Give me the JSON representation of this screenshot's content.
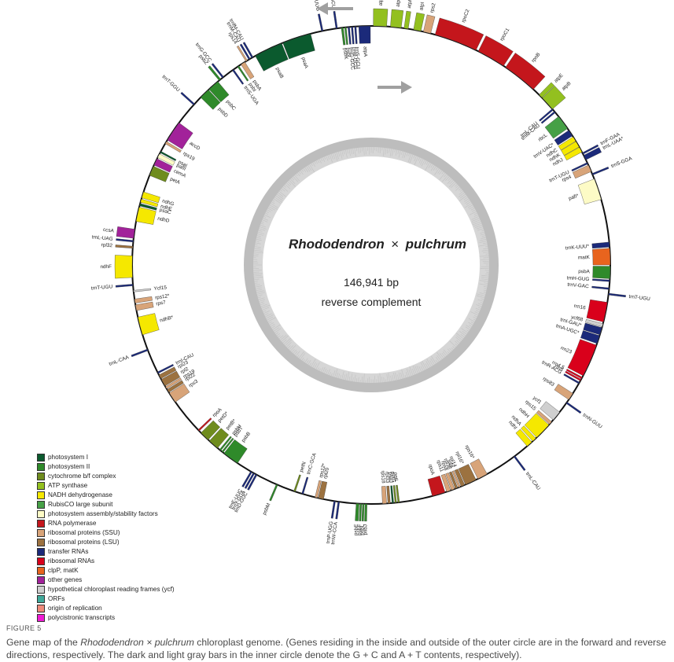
{
  "center": {
    "title_italic_1": "Rhododendron",
    "title_cross": "×",
    "title_italic_2": "pulchrum",
    "size": "146,941 bp",
    "orientation": "reverse complement"
  },
  "legend": [
    {
      "label": "photosystem I",
      "color": "#0b5a2e"
    },
    {
      "label": "photosystem II",
      "color": "#2f8a2a"
    },
    {
      "label": "cytochrome b/f complex",
      "color": "#6f8c1e"
    },
    {
      "label": "ATP synthase",
      "color": "#93c01f"
    },
    {
      "label": "NADH dehydrogenase",
      "color": "#f5e800"
    },
    {
      "label": "RubisCO large subunit",
      "color": "#46a046"
    },
    {
      "label": "photosystem assembly/stability factors",
      "color": "#fdfbc6"
    },
    {
      "label": "RNA polymerase",
      "color": "#c4161c"
    },
    {
      "label": "ribosomal proteins (SSU)",
      "color": "#d8a479"
    },
    {
      "label": "ribosomal proteins (LSU)",
      "color": "#9c7240"
    },
    {
      "label": "transfer RNAs",
      "color": "#1b2a7a"
    },
    {
      "label": "ribosomal RNAs",
      "color": "#d9001b"
    },
    {
      "label": "clpP, matK",
      "color": "#e8641e"
    },
    {
      "label": "other genes",
      "color": "#a2229a"
    },
    {
      "label": "hypothetical chloroplast reading frames (ycf)",
      "color": "#cfcfcf"
    },
    {
      "label": "ORFs",
      "color": "#3fa99a"
    },
    {
      "label": "origin of replication",
      "color": "#ef8a7a"
    },
    {
      "label": "polycistronic transcripts",
      "color": "#ef1bd4"
    }
  ],
  "genes": [
    {
      "name": "atpA",
      "pos": 0.5,
      "len": 3.2,
      "side": "out",
      "color": "#93c01f"
    },
    {
      "name": "atpF*",
      "pos": 4.6,
      "len": 2.6,
      "side": "out",
      "color": "#93c01f"
    },
    {
      "name": "atpH",
      "pos": 7.9,
      "len": 1.0,
      "side": "out",
      "color": "#93c01f"
    },
    {
      "name": "atpI",
      "pos": 10.2,
      "len": 1.8,
      "side": "out",
      "color": "#93c01f"
    },
    {
      "name": "rps2",
      "pos": 12.6,
      "len": 1.8,
      "side": "out",
      "color": "#d8a479"
    },
    {
      "name": "rpoC2",
      "pos": 15.5,
      "len": 10.5,
      "side": "out",
      "color": "#c4161c"
    },
    {
      "name": "rpoC1",
      "pos": 26.6,
      "len": 7.0,
      "side": "out",
      "color": "#c4161c"
    },
    {
      "name": "rpoB",
      "pos": 34.2,
      "len": 8.5,
      "side": "out",
      "color": "#c4161c"
    },
    {
      "name": "atpE",
      "pos": 44.6,
      "len": 1.0,
      "side": "out",
      "color": "#93c01f"
    },
    {
      "name": "atpB",
      "pos": 45.7,
      "len": 3.6,
      "side": "out",
      "color": "#93c01f"
    },
    {
      "name": "trnL-CAU",
      "pos": 49.2,
      "len": 0.4,
      "side": "in",
      "color": "#1b2a7a"
    },
    {
      "name": "trnM-CAU",
      "pos": 50.0,
      "len": 0.4,
      "side": "in",
      "color": "#1b2a7a"
    },
    {
      "name": "rbcL",
      "pos": 51.6,
      "len": 3.6,
      "side": "in",
      "color": "#46a046"
    },
    {
      "name": "trnV-UAC*",
      "pos": 55.7,
      "len": 1.6,
      "side": "in",
      "color": "#1b2a7a"
    },
    {
      "name": "ndhC",
      "pos": 57.6,
      "len": 1.2,
      "side": "in",
      "color": "#f5e800"
    },
    {
      "name": "ndhK",
      "pos": 58.9,
      "len": 1.5,
      "side": "in",
      "color": "#f5e800"
    },
    {
      "name": "ndhJ",
      "pos": 60.5,
      "len": 1.3,
      "side": "in",
      "color": "#f5e800"
    },
    {
      "name": "trnF-GAA",
      "pos": 62.0,
      "len": 0.4,
      "side": "out",
      "color": "#1b2a7a"
    },
    {
      "name": "trnL-UAA*",
      "pos": 62.7,
      "len": 1.2,
      "side": "out",
      "color": "#1b2a7a"
    },
    {
      "name": "trnT-UGU",
      "pos": 64.6,
      "len": 0.4,
      "side": "in",
      "color": "#1b2a7a"
    },
    {
      "name": "rps4",
      "pos": 65.3,
      "len": 1.7,
      "side": "in",
      "color": "#d8a479"
    },
    {
      "name": "trnS-GGA",
      "pos": 67.5,
      "len": 0.4,
      "side": "out",
      "color": "#1b2a7a"
    },
    {
      "name": "pafI*",
      "pos": 68.9,
      "len": 5.2,
      "side": "in",
      "color": "#fdfbc6"
    },
    {
      "name": "trnK-UUU*",
      "pos": 84.5,
      "len": 1.2,
      "side": "in",
      "color": "#1b2a7a"
    },
    {
      "name": "matK",
      "pos": 86.0,
      "len": 4.0,
      "side": "in",
      "color": "#e8641e"
    },
    {
      "name": "psbA",
      "pos": 90.3,
      "len": 3.0,
      "side": "in",
      "color": "#2f8a2a"
    },
    {
      "name": "trnH-GUG",
      "pos": 93.6,
      "len": 0.4,
      "side": "in",
      "color": "#1b2a7a"
    },
    {
      "name": "trnV-GAC",
      "pos": 95.5,
      "len": 0.4,
      "side": "in",
      "color": "#1b2a7a"
    },
    {
      "name": "trnT-UGU",
      "pos": 96.8,
      "len": 0.4,
      "side": "out",
      "color": "#1b2a7a"
    },
    {
      "name": "rrn16",
      "pos": 99.0,
      "len": 4.8,
      "side": "in",
      "color": "#d9001b"
    },
    {
      "name": "ycf68",
      "pos": 104.2,
      "len": 0.8,
      "side": "in",
      "color": "#cfcfcf"
    },
    {
      "name": "trnI-GAU*",
      "pos": 105.2,
      "len": 1.8,
      "side": "in",
      "color": "#1b2a7a"
    },
    {
      "name": "trnA-UGC*",
      "pos": 107.2,
      "len": 2.0,
      "side": "in",
      "color": "#1b2a7a"
    },
    {
      "name": "rrn23",
      "pos": 109.6,
      "len": 8.0,
      "side": "in",
      "color": "#d9001b"
    },
    {
      "name": "rrn4.5",
      "pos": 118.0,
      "len": 0.4,
      "side": "in",
      "color": "#d9001b"
    },
    {
      "name": "rrn5",
      "pos": 118.6,
      "len": 0.4,
      "side": "in",
      "color": "#d9001b"
    },
    {
      "name": "trnR-ACG",
      "pos": 119.4,
      "len": 0.4,
      "side": "in",
      "color": "#1b2a7a"
    },
    {
      "name": "rps83",
      "pos": 122.5,
      "len": 1.8,
      "side": "in",
      "color": "#d8a479"
    },
    {
      "name": "trnN-GUU",
      "pos": 125.0,
      "len": 0.4,
      "side": "out",
      "color": "#1b2a7a"
    },
    {
      "name": "ycf1",
      "pos": 128.0,
      "len": 2.4,
      "side": "in",
      "color": "#cfcfcf"
    },
    {
      "name": "rps15",
      "pos": 131.0,
      "len": 0.8,
      "side": "in",
      "color": "#d8a479"
    },
    {
      "name": "ndhH",
      "pos": 132.0,
      "len": 4.2,
      "side": "in",
      "color": "#f5e800"
    },
    {
      "name": "ndhA",
      "pos": 136.5,
      "len": 1.0,
      "side": "in",
      "color": "#f5e800"
    },
    {
      "name": "ndhI",
      "pos": 137.8,
      "len": 1.5,
      "side": "in",
      "color": "#f5e800"
    },
    {
      "name": "trnL-CAU",
      "pos": 143.0,
      "len": 0.4,
      "side": "out",
      "color": "#1b2a7a"
    },
    {
      "name": "rps16*",
      "pos": 151.0,
      "len": 2.5,
      "side": "in",
      "color": "#d8a479"
    },
    {
      "name": "rpl16*",
      "pos": 154.0,
      "len": 2.8,
      "side": "in",
      "color": "#9c7240"
    },
    {
      "name": "rpl14",
      "pos": 157.0,
      "len": 0.9,
      "side": "in",
      "color": "#9c7240"
    },
    {
      "name": "infA",
      "pos": 158.1,
      "len": 0.5,
      "side": "in",
      "color": "#d8a479"
    },
    {
      "name": "rpl36",
      "pos": 158.8,
      "len": 0.6,
      "side": "in",
      "color": "#9c7240"
    },
    {
      "name": "rps8",
      "pos": 159.6,
      "len": 0.8,
      "side": "in",
      "color": "#d8a479"
    },
    {
      "name": "rps11",
      "pos": 160.6,
      "len": 1.0,
      "side": "in",
      "color": "#d8a479"
    },
    {
      "name": "rpoA",
      "pos": 162.0,
      "len": 3.2,
      "side": "in",
      "color": "#c4161c"
    },
    {
      "name": "petL",
      "pos": 173.2,
      "len": 0.4,
      "side": "in",
      "color": "#6f8c1e"
    },
    {
      "name": "petG",
      "pos": 173.9,
      "len": 0.4,
      "side": "in",
      "color": "#6f8c1e"
    },
    {
      "name": "psaJ",
      "pos": 174.6,
      "len": 0.4,
      "side": "in",
      "color": "#0b5a2e"
    },
    {
      "name": "rpl33",
      "pos": 175.4,
      "len": 0.6,
      "side": "in",
      "color": "#9c7240"
    },
    {
      "name": "rps18",
      "pos": 176.3,
      "len": 1.0,
      "side": "in",
      "color": "#d8a479"
    },
    {
      "name": "psbJ",
      "pos": 181.0,
      "len": 0.5,
      "side": "out",
      "color": "#2f8a2a"
    },
    {
      "name": "psbL",
      "pos": 181.7,
      "len": 0.4,
      "side": "out",
      "color": "#2f8a2a"
    },
    {
      "name": "psbF",
      "pos": 182.3,
      "len": 0.4,
      "side": "out",
      "color": "#2f8a2a"
    },
    {
      "name": "psbE",
      "pos": 182.9,
      "len": 0.7,
      "side": "out",
      "color": "#2f8a2a"
    },
    {
      "name": "trnW-CCA",
      "pos": 187.6,
      "len": 0.4,
      "side": "out",
      "color": "#1b2a7a"
    },
    {
      "name": "trnP-UGG",
      "pos": 188.6,
      "len": 0.4,
      "side": "out",
      "color": "#1b2a7a"
    },
    {
      "name": "rpl20",
      "pos": 191.5,
      "len": 1.3,
      "side": "in",
      "color": "#9c7240"
    },
    {
      "name": "rps12*",
      "pos": 193.0,
      "len": 0.6,
      "side": "in",
      "color": "#d8a479"
    },
    {
      "name": "trnC-GCA",
      "pos": 196.5,
      "len": 0.4,
      "side": "in",
      "color": "#1b2a7a"
    },
    {
      "name": "petN",
      "pos": 198.5,
      "len": 0.4,
      "side": "in",
      "color": "#6f8c1e"
    },
    {
      "name": "psbM",
      "pos": 203.0,
      "len": 0.4,
      "side": "out",
      "color": "#2f8a2a"
    },
    {
      "name": "trnD-GUC",
      "pos": 208.5,
      "len": 0.4,
      "side": "out",
      "color": "#1b2a7a"
    },
    {
      "name": "trnY-GUA",
      "pos": 209.2,
      "len": 0.4,
      "side": "out",
      "color": "#1b2a7a"
    },
    {
      "name": "trnE-UUC",
      "pos": 209.9,
      "len": 0.4,
      "side": "out",
      "color": "#1b2a7a"
    },
    {
      "name": "psbB",
      "pos": 214.0,
      "len": 4.0,
      "side": "in",
      "color": "#2f8a2a"
    },
    {
      "name": "psbT",
      "pos": 218.3,
      "len": 0.4,
      "side": "in",
      "color": "#2f8a2a"
    },
    {
      "name": "psbH",
      "pos": 219.0,
      "len": 0.4,
      "side": "in",
      "color": "#2f8a2a"
    },
    {
      "name": "petB*",
      "pos": 220.0,
      "len": 2.6,
      "side": "in",
      "color": "#6f8c1e"
    },
    {
      "name": "petD*",
      "pos": 223.0,
      "len": 2.4,
      "side": "in",
      "color": "#6f8c1e"
    },
    {
      "name": "rpoA",
      "pos": 226.0,
      "len": 0.4,
      "side": "in",
      "color": "#c4161c"
    },
    {
      "name": "rps3",
      "pos": 235.0,
      "len": 2.6,
      "side": "in",
      "color": "#d8a479"
    },
    {
      "name": "rpl22",
      "pos": 237.8,
      "len": 0.8,
      "side": "in",
      "color": "#9c7240"
    },
    {
      "name": "rps19",
      "pos": 238.8,
      "len": 0.6,
      "side": "in",
      "color": "#d8a479"
    },
    {
      "name": "rpl2",
      "pos": 239.6,
      "len": 1.8,
      "side": "in",
      "color": "#9c7240"
    },
    {
      "name": "rpl23",
      "pos": 241.6,
      "len": 1.0,
      "side": "in",
      "color": "#9c7240"
    },
    {
      "name": "trnI-CAU",
      "pos": 243.0,
      "len": 0.4,
      "side": "in",
      "color": "#1b2a7a"
    },
    {
      "name": "trnL-CAA",
      "pos": 249.0,
      "len": 0.4,
      "side": "out",
      "color": "#1b2a7a"
    },
    {
      "name": "ndhB*",
      "pos": 253.0,
      "len": 4.4,
      "side": "in",
      "color": "#f5e800"
    },
    {
      "name": "rps7",
      "pos": 259.0,
      "len": 1.4,
      "side": "in",
      "color": "#d8a479"
    },
    {
      "name": "rps12*",
      "pos": 260.8,
      "len": 1.0,
      "side": "in",
      "color": "#d8a479"
    },
    {
      "name": "Ycf15",
      "pos": 263.5,
      "len": 0.4,
      "side": "in",
      "color": "#cfcfcf"
    },
    {
      "name": "trnT-UGU",
      "pos": 265.0,
      "len": 0.4,
      "side": "out",
      "color": "#1b2a7a"
    },
    {
      "name": "ndhF",
      "pos": 267.0,
      "len": 5.2,
      "side": "out",
      "color": "#f5e800"
    },
    {
      "name": "rpl32",
      "pos": 274.0,
      "len": 0.5,
      "side": "out",
      "color": "#9c7240"
    },
    {
      "name": "trnL-UAG",
      "pos": 275.5,
      "len": 0.4,
      "side": "out",
      "color": "#1b2a7a"
    },
    {
      "name": "ccsA",
      "pos": 276.4,
      "len": 2.2,
      "side": "out",
      "color": "#a2229a"
    },
    {
      "name": "ndhD",
      "pos": 280.5,
      "len": 3.5,
      "side": "in",
      "color": "#f5e800"
    },
    {
      "name": "psaC",
      "pos": 284.3,
      "len": 0.6,
      "side": "in",
      "color": "#0b5a2e"
    },
    {
      "name": "ndhE",
      "pos": 285.2,
      "len": 0.8,
      "side": "in",
      "color": "#f5e800"
    },
    {
      "name": "ndhG",
      "pos": 286.3,
      "len": 1.5,
      "side": "in",
      "color": "#f5e800"
    },
    {
      "name": "petA",
      "pos": 292.0,
      "len": 2.4,
      "side": "in",
      "color": "#6f8c1e"
    },
    {
      "name": "cemA",
      "pos": 294.7,
      "len": 1.7,
      "side": "in",
      "color": "#a2229a"
    },
    {
      "name": "pafII",
      "pos": 296.7,
      "len": 1.0,
      "side": "in",
      "color": "#fdfbc6"
    },
    {
      "name": "psaI",
      "pos": 298.0,
      "len": 0.4,
      "side": "in",
      "color": "#0b5a2e"
    },
    {
      "name": "rps19",
      "pos": 300.5,
      "len": 0.6,
      "side": "in",
      "color": "#d8a479"
    },
    {
      "name": "accD",
      "pos": 301.5,
      "len": 5.0,
      "side": "in",
      "color": "#a2229a"
    },
    {
      "name": "trnT-GGU",
      "pos": 312.0,
      "len": 0.4,
      "side": "out",
      "color": "#1b2a7a"
    },
    {
      "name": "psbD",
      "pos": 314.5,
      "len": 2.6,
      "side": "in",
      "color": "#2f8a2a"
    },
    {
      "name": "psbC",
      "pos": 317.3,
      "len": 2.8,
      "side": "in",
      "color": "#2f8a2a"
    },
    {
      "name": "psbZ",
      "pos": 320.5,
      "len": 0.5,
      "side": "out",
      "color": "#2f8a2a"
    },
    {
      "name": "trnG-GCC",
      "pos": 321.5,
      "len": 0.4,
      "side": "out",
      "color": "#1b2a7a"
    },
    {
      "name": "trnS-UGA",
      "pos": 324.5,
      "len": 0.4,
      "side": "in",
      "color": "#1b2a7a"
    },
    {
      "name": "psbI",
      "pos": 326.0,
      "len": 0.4,
      "side": "in",
      "color": "#2f8a2a"
    },
    {
      "name": "psbA",
      "pos": 327.0,
      "len": 1.1,
      "side": "in",
      "color": "#d8a479"
    },
    {
      "name": "rps14",
      "pos": 328.4,
      "len": 0.4,
      "side": "out",
      "color": "#d8a479"
    },
    {
      "name": "trnM-CAU",
      "pos": 329.2,
      "len": 0.4,
      "side": "out",
      "color": "#1b2a7a"
    },
    {
      "name": "trnfM-CAU",
      "pos": 330.0,
      "len": 0.4,
      "side": "out",
      "color": "#1b2a7a"
    },
    {
      "name": "psaB",
      "pos": 331.0,
      "len": 7.0,
      "side": "in",
      "color": "#0b5a2e"
    },
    {
      "name": "psaA",
      "pos": 338.3,
      "len": 7.0,
      "side": "in",
      "color": "#0b5a2e"
    },
    {
      "name": "trnQ-UUG",
      "pos": 348.0,
      "len": 0.4,
      "side": "out",
      "color": "#1b2a7a"
    },
    {
      "name": "trnS-GCU",
      "pos": 351.5,
      "len": 0.4,
      "side": "out",
      "color": "#1b2a7a"
    },
    {
      "name": "psbK",
      "pos": 352.8,
      "len": 0.5,
      "side": "in",
      "color": "#2f8a2a"
    },
    {
      "name": "psbI",
      "pos": 353.6,
      "len": 0.4,
      "side": "in",
      "color": "#2f8a2a"
    },
    {
      "name": "trnG-GCC",
      "pos": 354.4,
      "len": 0.4,
      "side": "in",
      "color": "#1b2a7a"
    },
    {
      "name": "trnR-UCU",
      "pos": 355.2,
      "len": 0.4,
      "side": "in",
      "color": "#1b2a7a"
    },
    {
      "name": "trnS-GCU",
      "pos": 356.0,
      "len": 0.4,
      "side": "in",
      "color": "#1b2a7a"
    },
    {
      "name": "atpA",
      "pos": 357.0,
      "len": 2.8,
      "side": "in",
      "color": "#1b2a7a"
    }
  ],
  "caption": {
    "figure_label": "FIGURE 5",
    "part1": "Gene map of the ",
    "italic1": "Rhododendron × pulchrum",
    "part2": " chloroplast genome. (Genes residing in the inside and outside of the outer circle are in the forward and reverse directions, respectively. The dark and light gray bars in the inner circle denote the G + C and A + T contents, respectively)."
  }
}
